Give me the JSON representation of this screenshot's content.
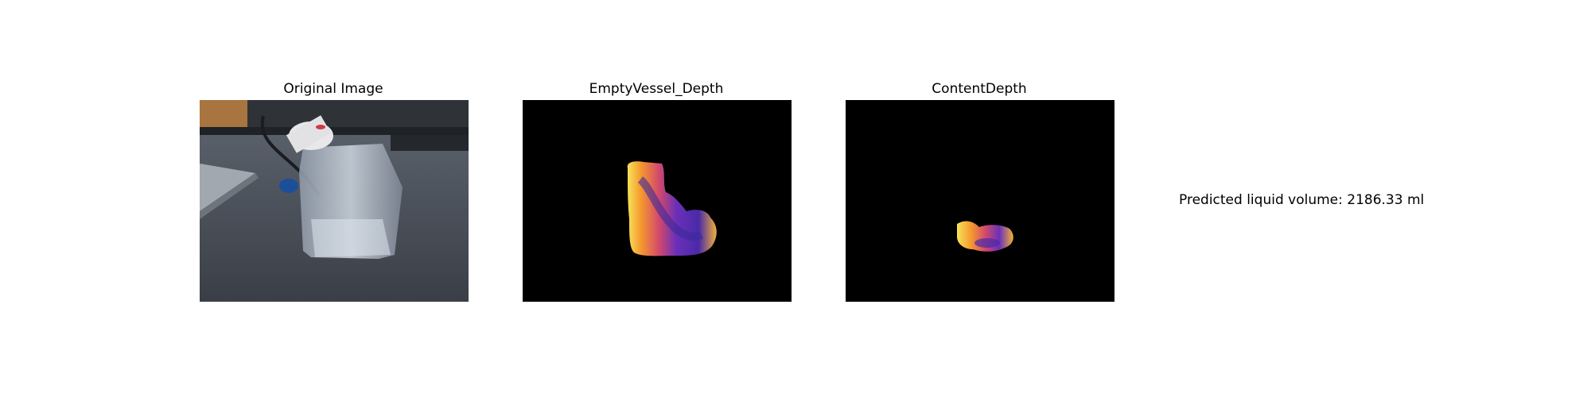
{
  "panels": [
    {
      "title": "Original Image"
    },
    {
      "title": "EmptyVessel_Depth"
    },
    {
      "title": "ContentDepth"
    }
  ],
  "result": {
    "text": "Predicted liquid volume: 2186.33 ml"
  }
}
